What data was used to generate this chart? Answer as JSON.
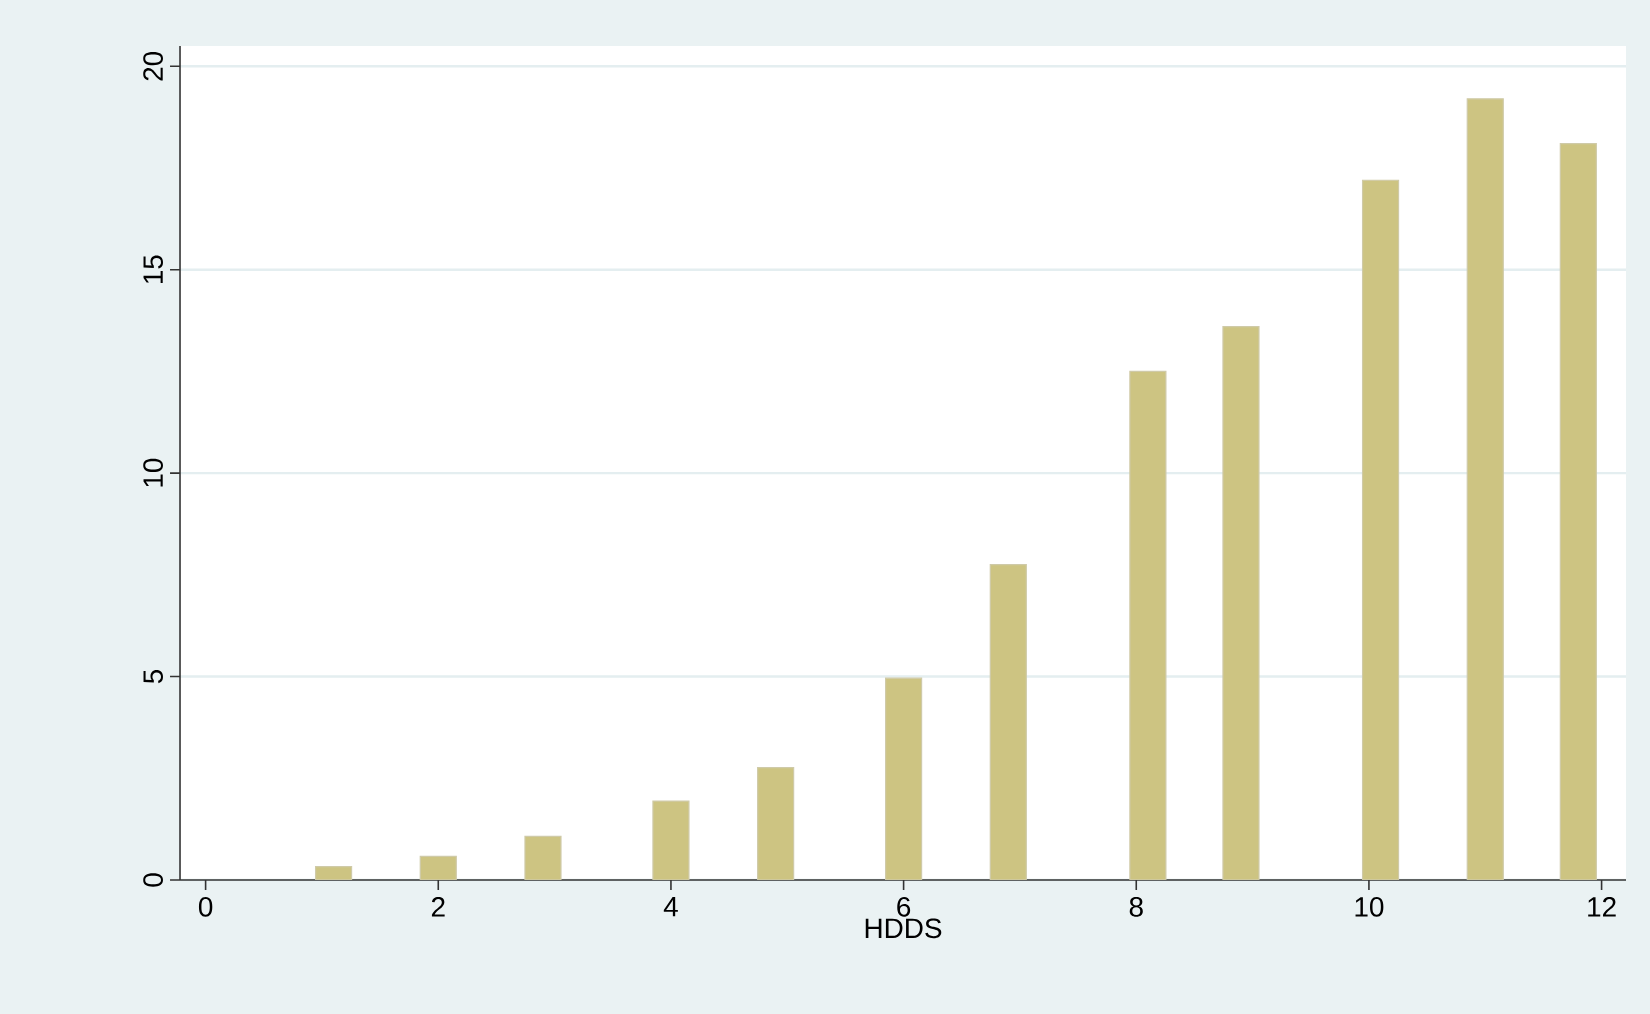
{
  "chart_data": {
    "type": "bar",
    "xlabel": "HDDS",
    "x": [
      1.1,
      2.0,
      2.9,
      4.0,
      4.9,
      6.0,
      6.9,
      8.1,
      8.9,
      10.1,
      11.0,
      11.8
    ],
    "values": [
      0.33,
      0.58,
      1.07,
      1.94,
      2.76,
      4.96,
      7.75,
      12.5,
      13.6,
      17.2,
      19.2,
      18.1
    ],
    "color": "#cdc482",
    "xlim": [
      -0.22,
      12.21
    ],
    "ylim": [
      0,
      20.5
    ],
    "xticks": [
      0,
      2,
      4,
      6,
      8,
      10,
      12
    ],
    "yticks": [
      0,
      5,
      10,
      15,
      20
    ],
    "grid": "y"
  }
}
